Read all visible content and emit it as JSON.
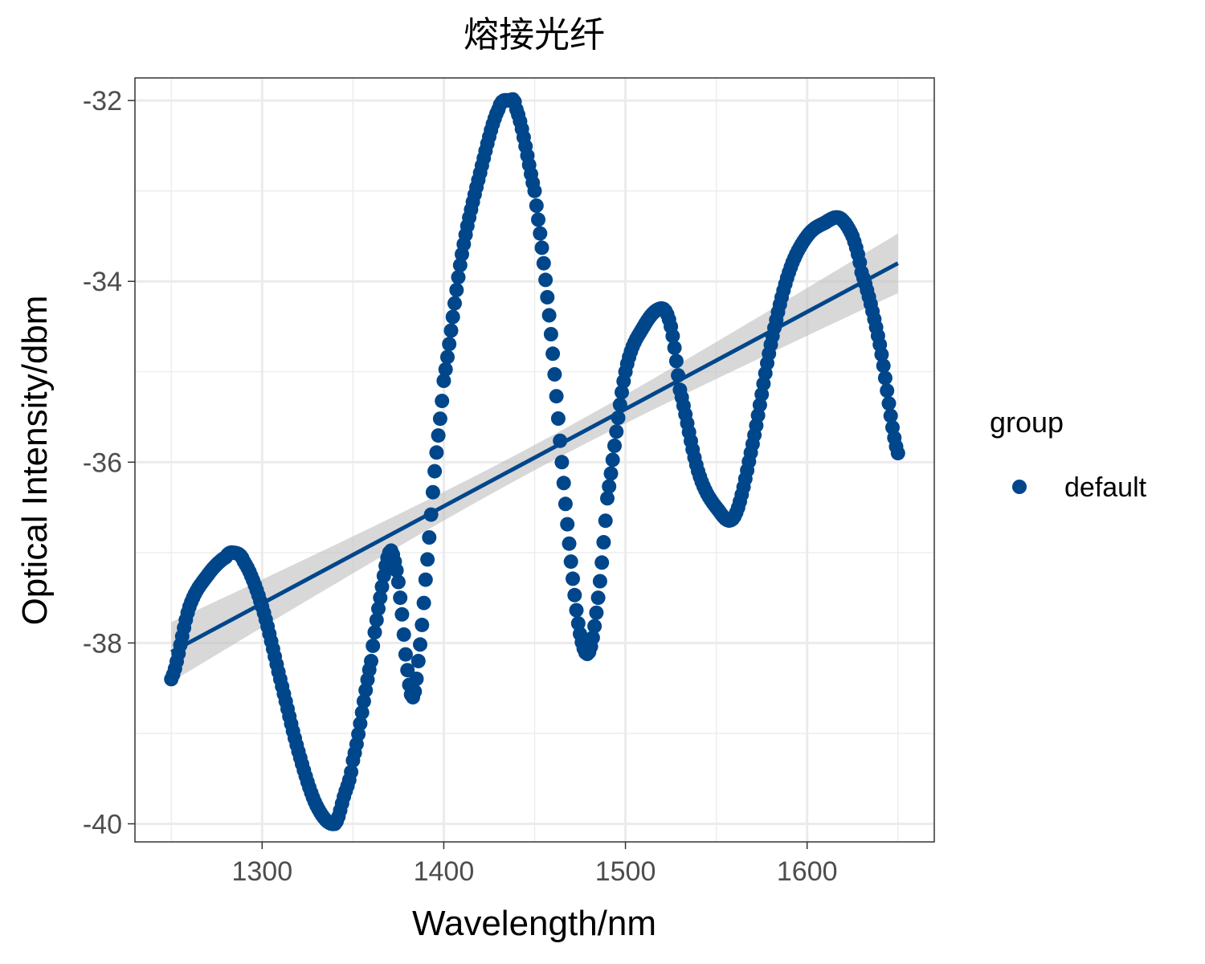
{
  "chart_data": {
    "type": "scatter",
    "title": "熔接光纤",
    "xlabel": "Wavelength/nm",
    "ylabel": "Optical Intensity/dbm",
    "xlim": [
      1230,
      1670
    ],
    "ylim": [
      -40.2,
      -31.75
    ],
    "x_ticks": [
      1300,
      1400,
      1500,
      1600
    ],
    "y_ticks": [
      -40,
      -38,
      -36,
      -34,
      -32
    ],
    "x_tick_labels": [
      "1300",
      "1400",
      "1500",
      "1600"
    ],
    "y_tick_labels": [
      "-40",
      "-38",
      "-36",
      "-34",
      "-32"
    ],
    "grid": true,
    "legend": {
      "title": "group",
      "position": "right",
      "entries": [
        "default"
      ]
    },
    "colors": {
      "points": "#00468B",
      "fit_line": "#00468B",
      "ribbon": "#BEBEBE",
      "grid": "#EBEBEB",
      "panel_border": "#333333"
    },
    "series": [
      {
        "name": "default",
        "x": [
          1250,
          1260,
          1270,
          1280,
          1284,
          1290,
          1300,
          1310,
          1320,
          1330,
          1340,
          1345,
          1350,
          1360,
          1365,
          1370,
          1373,
          1376,
          1380,
          1383,
          1386,
          1390,
          1395,
          1400,
          1410,
          1420,
          1430,
          1436,
          1440,
          1450,
          1455,
          1460,
          1465,
          1470,
          1475,
          1480,
          1485,
          1490,
          1500,
          1510,
          1520,
          1525,
          1530,
          1540,
          1550,
          1560,
          1570,
          1580,
          1590,
          1600,
          1610,
          1618,
          1625,
          1630,
          1640,
          1650
        ],
        "y": [
          -38.4,
          -37.6,
          -37.25,
          -37.05,
          -37.0,
          -37.1,
          -37.6,
          -38.4,
          -39.2,
          -39.8,
          -40.0,
          -39.7,
          -39.3,
          -38.2,
          -37.5,
          -37.0,
          -37.1,
          -37.5,
          -38.3,
          -38.6,
          -38.2,
          -37.3,
          -36.1,
          -35.1,
          -33.7,
          -32.8,
          -32.1,
          -32.0,
          -32.1,
          -33.0,
          -33.8,
          -34.8,
          -36.0,
          -37.1,
          -37.9,
          -38.1,
          -37.5,
          -36.4,
          -35.0,
          -34.5,
          -34.3,
          -34.5,
          -35.2,
          -36.1,
          -36.5,
          -36.6,
          -35.8,
          -34.7,
          -33.9,
          -33.5,
          -33.35,
          -33.3,
          -33.5,
          -33.9,
          -34.7,
          -35.9
        ]
      }
    ],
    "fit_line": {
      "method": "linear",
      "x": [
        1250,
        1650
      ],
      "y": [
        -38.1,
        -33.8
      ],
      "ci_half_width_ends": 0.33,
      "ci_half_width_mid": 0.14
    }
  }
}
